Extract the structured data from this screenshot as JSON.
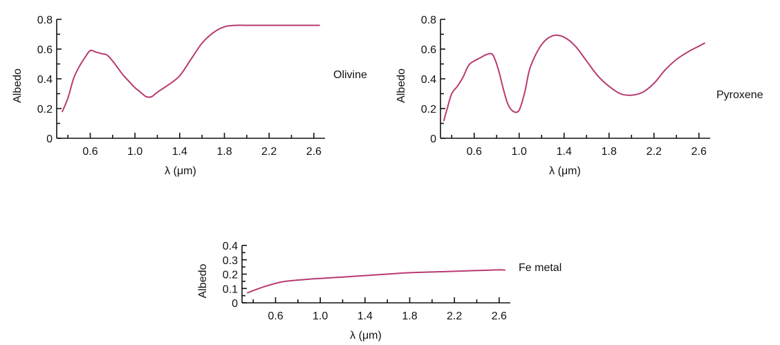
{
  "colors": {
    "curve": "#b83a72",
    "axis": "#111111"
  },
  "chart_data": [
    {
      "type": "line",
      "title": "",
      "label": "Olivine",
      "xlabel": "λ (μm)",
      "ylabel": "Albedo",
      "xlim": [
        0.3,
        2.7
      ],
      "ylim": [
        0,
        0.8
      ],
      "xticks": [
        "0.6",
        "1.0",
        "1.4",
        "1.8",
        "2.2",
        "2.6"
      ],
      "yticks": [
        "0",
        "0.2",
        "0.4",
        "0.6",
        "0.8"
      ],
      "series": [
        {
          "x": [
            0.35,
            0.4,
            0.45,
            0.5,
            0.55,
            0.6,
            0.65,
            0.7,
            0.75,
            0.8,
            0.85,
            0.9,
            0.95,
            1.0,
            1.05,
            1.1,
            1.15,
            1.2,
            1.3,
            1.4,
            1.5,
            1.6,
            1.7,
            1.8,
            1.9,
            2.0,
            2.2,
            2.4,
            2.6,
            2.65
          ],
          "y": [
            0.18,
            0.27,
            0.4,
            0.48,
            0.54,
            0.59,
            0.58,
            0.57,
            0.56,
            0.52,
            0.47,
            0.42,
            0.38,
            0.34,
            0.31,
            0.28,
            0.28,
            0.31,
            0.36,
            0.42,
            0.53,
            0.64,
            0.71,
            0.75,
            0.76,
            0.76,
            0.76,
            0.76,
            0.76,
            0.76
          ]
        }
      ]
    },
    {
      "type": "line",
      "title": "",
      "label": "Pyroxene",
      "xlabel": "λ (μm)",
      "ylabel": "Albedo",
      "xlim": [
        0.3,
        2.7
      ],
      "ylim": [
        0,
        0.8
      ],
      "xticks": [
        "0.6",
        "1.0",
        "1.4",
        "1.8",
        "2.2",
        "2.6"
      ],
      "yticks": [
        "0",
        "0.2",
        "0.4",
        "0.6",
        "0.8"
      ],
      "series": [
        {
          "x": [
            0.33,
            0.36,
            0.4,
            0.45,
            0.5,
            0.55,
            0.6,
            0.65,
            0.7,
            0.75,
            0.78,
            0.82,
            0.86,
            0.9,
            0.95,
            1.0,
            1.05,
            1.1,
            1.2,
            1.3,
            1.4,
            1.5,
            1.6,
            1.7,
            1.8,
            1.9,
            2.0,
            2.1,
            2.2,
            2.3,
            2.4,
            2.5,
            2.6,
            2.65
          ],
          "y": [
            0.12,
            0.2,
            0.3,
            0.35,
            0.41,
            0.49,
            0.52,
            0.54,
            0.56,
            0.57,
            0.54,
            0.45,
            0.33,
            0.23,
            0.18,
            0.19,
            0.31,
            0.48,
            0.63,
            0.69,
            0.68,
            0.62,
            0.52,
            0.42,
            0.35,
            0.3,
            0.29,
            0.31,
            0.37,
            0.46,
            0.53,
            0.58,
            0.62,
            0.64
          ]
        }
      ]
    },
    {
      "type": "line",
      "title": "",
      "label": "Fe metal",
      "xlabel": "λ (μm)",
      "ylabel": "Albedo",
      "xlim": [
        0.3,
        2.7
      ],
      "ylim": [
        0,
        0.4
      ],
      "xticks": [
        "0.6",
        "1.0",
        "1.4",
        "1.8",
        "2.2",
        "2.6"
      ],
      "yticks": [
        "0",
        "0.1",
        "0.2",
        "0.3",
        "0.4"
      ],
      "series": [
        {
          "x": [
            0.35,
            0.45,
            0.55,
            0.65,
            0.75,
            0.9,
            1.0,
            1.2,
            1.4,
            1.6,
            1.8,
            2.0,
            2.2,
            2.4,
            2.6,
            2.65
          ],
          "y": [
            0.07,
            0.1,
            0.125,
            0.145,
            0.155,
            0.165,
            0.17,
            0.18,
            0.19,
            0.2,
            0.21,
            0.215,
            0.22,
            0.225,
            0.23,
            0.228
          ]
        }
      ]
    }
  ]
}
